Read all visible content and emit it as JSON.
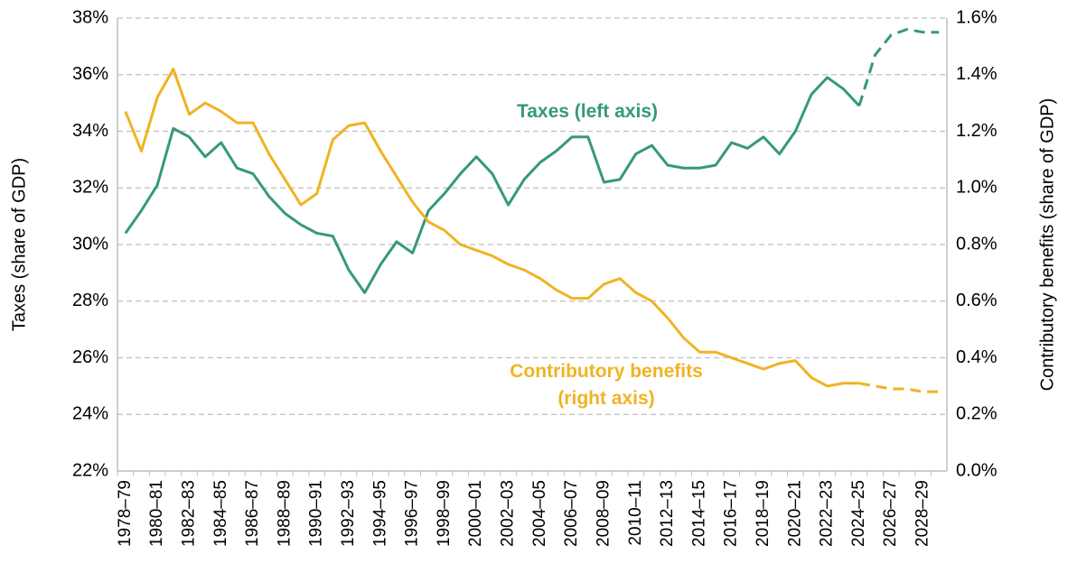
{
  "chart_data": {
    "type": "line",
    "categories": [
      "1978–79",
      null,
      "1980–81",
      null,
      "1982–83",
      null,
      "1984–85",
      null,
      "1986–87",
      null,
      "1988–89",
      null,
      "1990–91",
      null,
      "1992–93",
      null,
      "1994–95",
      null,
      "1996–97",
      null,
      "1998–99",
      null,
      "2000–01",
      null,
      "2002–03",
      null,
      "2004–05",
      null,
      "2006–07",
      null,
      "2008–09",
      null,
      "2010–11",
      null,
      "2012–13",
      null,
      "2014–15",
      null,
      "2016–17",
      null,
      "2018–19",
      null,
      "2020–21",
      null,
      "2022–23",
      null,
      "2024–25",
      null,
      "2026–27",
      null,
      "2028–29",
      null
    ],
    "dashed_from": "2024–25",
    "series": [
      {
        "name": "Taxes (left axis)",
        "color": "#35997a",
        "axis": "y",
        "values": [
          30.4,
          31.2,
          32.1,
          34.1,
          33.8,
          33.1,
          33.6,
          32.7,
          32.5,
          31.7,
          31.1,
          30.7,
          30.4,
          30.3,
          29.1,
          28.3,
          29.3,
          30.1,
          29.7,
          31.2,
          31.8,
          32.5,
          33.1,
          32.5,
          31.4,
          32.3,
          32.9,
          33.3,
          33.8,
          33.8,
          32.2,
          32.3,
          33.2,
          33.5,
          32.8,
          32.7,
          32.7,
          32.8,
          33.6,
          33.4,
          33.8,
          33.2,
          34.0,
          35.3,
          35.9,
          35.5,
          34.9,
          36.7,
          37.4,
          37.6,
          37.5,
          37.5
        ]
      },
      {
        "name": "Contributory benefits (right axis)",
        "color": "#f0b323",
        "axis": "y2",
        "values": [
          1.27,
          1.13,
          1.32,
          1.42,
          1.26,
          1.3,
          1.27,
          1.23,
          1.23,
          1.12,
          1.03,
          0.94,
          0.98,
          1.17,
          1.22,
          1.23,
          1.13,
          1.04,
          0.95,
          0.88,
          0.85,
          0.8,
          0.78,
          0.76,
          0.73,
          0.71,
          0.68,
          0.64,
          0.61,
          0.61,
          0.66,
          0.68,
          0.63,
          0.6,
          0.54,
          0.47,
          0.42,
          0.42,
          0.4,
          0.38,
          0.36,
          0.38,
          0.39,
          0.33,
          0.3,
          0.31,
          0.31,
          0.3,
          0.29,
          0.29,
          0.28,
          0.28
        ]
      }
    ],
    "ylabel": "Taxes (share of GDP)",
    "y2label": "Contributory benefits (share of GDP)",
    "ylim": [
      22,
      38
    ],
    "yticks": [
      {
        "value": 22,
        "label": "22%"
      },
      {
        "value": 24,
        "label": "24%"
      },
      {
        "value": 26,
        "label": "26%"
      },
      {
        "value": 28,
        "label": "28%"
      },
      {
        "value": 30,
        "label": "30%"
      },
      {
        "value": 32,
        "label": "32%"
      },
      {
        "value": 34,
        "label": "34%"
      },
      {
        "value": 36,
        "label": "36%"
      },
      {
        "value": 38,
        "label": "38%"
      }
    ],
    "y2lim": [
      0,
      1.6
    ],
    "y2ticks": [
      {
        "value": 0,
        "label": "0.0%"
      },
      {
        "value": 0.2,
        "label": "0.2%"
      },
      {
        "value": 0.4,
        "label": "0.4%"
      },
      {
        "value": 0.6,
        "label": "0.6%"
      },
      {
        "value": 0.8,
        "label": "0.8%"
      },
      {
        "value": 1.0,
        "label": "1.0%"
      },
      {
        "value": 1.2,
        "label": "1.2%"
      },
      {
        "value": 1.4,
        "label": "1.4%"
      },
      {
        "value": 1.6,
        "label": "1.6%"
      }
    ],
    "grid": true
  }
}
